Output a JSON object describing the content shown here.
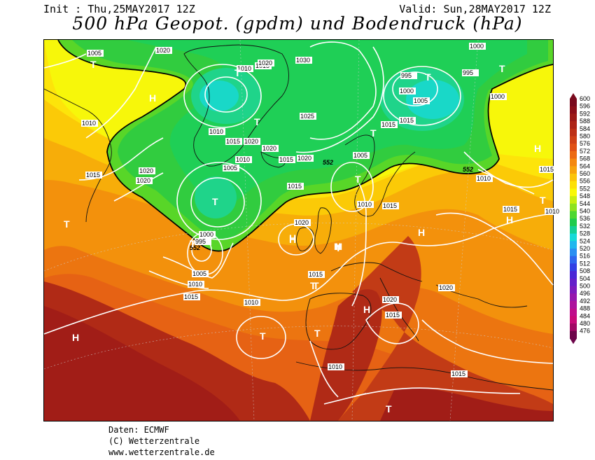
{
  "header": {
    "init": "Init : Thu,25MAY2017 12Z",
    "valid": "Valid: Sun,28MAY2017 12Z",
    "title": "500 hPa Geopot. (gpdm) und Bodendruck (hPa)"
  },
  "credits": {
    "line1": "Daten: ECMWF",
    "line2": "(C) Wetterzentrale",
    "line3": "www.wetterzentrale.de"
  },
  "legend": {
    "levels": [
      600,
      596,
      592,
      588,
      584,
      580,
      576,
      572,
      568,
      564,
      560,
      556,
      552,
      548,
      544,
      540,
      536,
      532,
      528,
      524,
      520,
      516,
      512,
      508,
      504,
      500,
      496,
      492,
      488,
      484,
      480,
      476
    ],
    "colors": [
      "#7a0a1e",
      "#8c0f1a",
      "#9c1a18",
      "#ad2417",
      "#bd3016",
      "#cf4015",
      "#e05014",
      "#ec6a12",
      "#f4880f",
      "#f7a30c",
      "#fbc40a",
      "#fde007",
      "#f9f806",
      "#c8ee10",
      "#8fe21f",
      "#4dd731",
      "#1fcb4d",
      "#14cf95",
      "#16d9d8",
      "#21b7ee",
      "#2a8ff2",
      "#2f66ee",
      "#3340e4",
      "#4a27d6",
      "#6420ca",
      "#7d1bbd",
      "#9617ad",
      "#ad129d",
      "#bf0d8b",
      "#c80a79",
      "#a10865",
      "#6d054a"
    ]
  },
  "map": {
    "pressure_labels": [
      "1005",
      "1020",
      "1010",
      "1015",
      "1020",
      "1030",
      "1000",
      "995",
      "995",
      "1000",
      "1005",
      "1000",
      "1010",
      "1025",
      "1015",
      "1015",
      "1010",
      "1015",
      "1020",
      "1020",
      "1015",
      "1020",
      "1010",
      "1005",
      "1020",
      "1015",
      "1020",
      "1005",
      "1010",
      "1000",
      "995",
      "1005",
      "1010",
      "1015",
      "1015",
      "1015",
      "1020",
      "1010",
      "1020",
      "1015",
      "1020",
      "1015",
      "1010",
      "1015",
      "1010",
      "1010",
      "1015",
      "1015"
    ],
    "height_labels": [
      "552",
      "552",
      "552"
    ],
    "high_markers": [
      "H",
      "H",
      "H",
      "H",
      "H",
      "H",
      "H",
      "H",
      "H",
      "H"
    ],
    "low_markers": [
      "T",
      "T",
      "T",
      "T",
      "T",
      "T",
      "T",
      "T",
      "T",
      "T",
      "T",
      "T",
      "T",
      "T",
      "T",
      "T",
      "T"
    ]
  }
}
